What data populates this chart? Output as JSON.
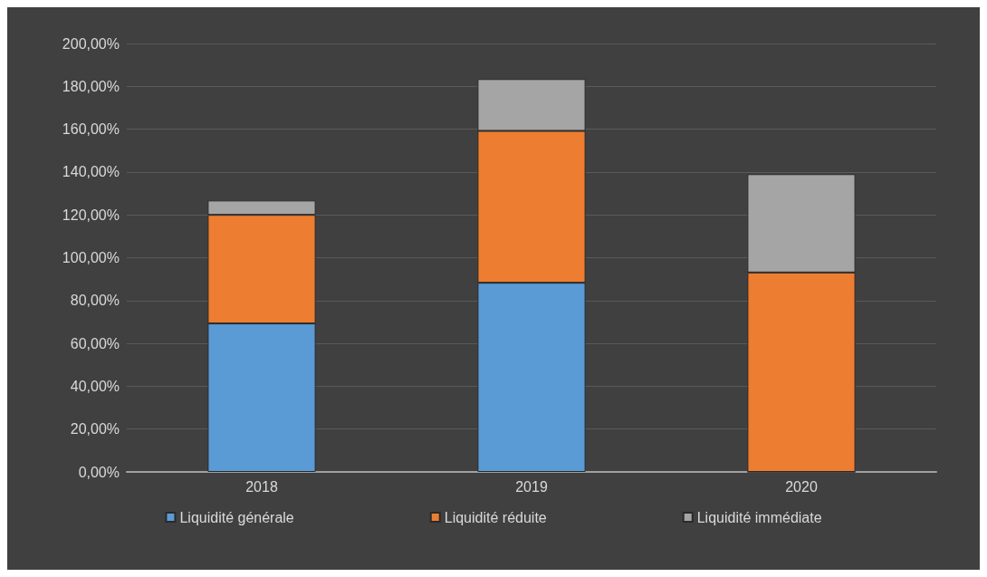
{
  "chart_data": {
    "type": "bar",
    "stacked": true,
    "categories": [
      "2018",
      "2019",
      "2020"
    ],
    "series": [
      {
        "name": "Liquidité générale",
        "color": "#5b9bd5",
        "values": [
          69.3,
          88.3,
          0
        ]
      },
      {
        "name": "Liquidité réduite",
        "color": "#ed7d31",
        "values": [
          50.7,
          70.9,
          93.1
        ]
      },
      {
        "name": "Liquidité immédiate",
        "color": "#a5a5a5",
        "values": [
          6.7,
          24.2,
          45.9
        ]
      }
    ],
    "ylim": [
      0,
      200
    ],
    "yticks": [
      {
        "value": 0,
        "label": "0,00%"
      },
      {
        "value": 20,
        "label": "20,00%"
      },
      {
        "value": 40,
        "label": "40,00%"
      },
      {
        "value": 60,
        "label": "60,00%"
      },
      {
        "value": 80,
        "label": "80,00%"
      },
      {
        "value": 100,
        "label": "100,00%"
      },
      {
        "value": 120,
        "label": "120,00%"
      },
      {
        "value": 140,
        "label": "140,00%"
      },
      {
        "value": 160,
        "label": "160,00%"
      },
      {
        "value": 180,
        "label": "180,00%"
      },
      {
        "value": 200,
        "label": "200,00%"
      }
    ],
    "grid": "y",
    "legend": "bottom"
  }
}
